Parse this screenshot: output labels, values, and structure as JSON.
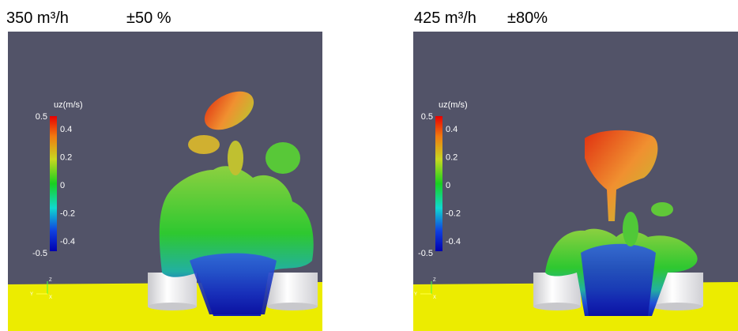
{
  "panels": [
    {
      "flow": "350 m³/h",
      "amplitude": "±50 %",
      "colorbar": {
        "label": "uz(m/s)",
        "max": "0.5",
        "min": "-0.5",
        "ticks": [
          "0.4",
          "0.2",
          "0",
          "-0.2",
          "-0.4"
        ]
      },
      "axes": {
        "z": "Z",
        "y": "Y",
        "x": "X"
      }
    },
    {
      "flow": "425 m³/h",
      "amplitude": "±80%",
      "colorbar": {
        "label": "uz(m/s)",
        "max": "0.5",
        "min": "-0.5",
        "ticks": [
          "0.4",
          "0.2",
          "0",
          "-0.2",
          "-0.4"
        ]
      },
      "axes": {
        "z": "Z",
        "y": "Y",
        "x": "X"
      }
    }
  ]
}
